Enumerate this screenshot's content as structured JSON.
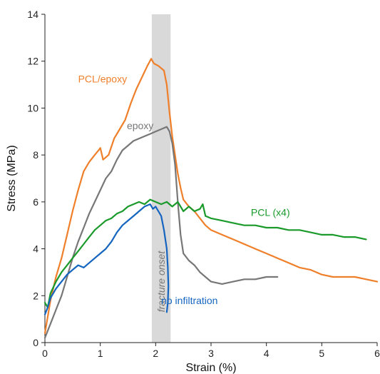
{
  "chart_data": {
    "type": "line",
    "xlabel": "Strain (%)",
    "ylabel": "Stress (MPa)",
    "xlim": [
      0,
      6
    ],
    "ylim": [
      0,
      14
    ],
    "x_ticks": [
      0,
      1,
      2,
      3,
      4,
      5,
      6
    ],
    "y_ticks": [
      0,
      2,
      4,
      6,
      8,
      10,
      12,
      14
    ],
    "grid": false,
    "band": {
      "x_range": [
        1.93,
        2.27
      ],
      "label": "fracture onset",
      "color": "#d9d9d9"
    },
    "series": [
      {
        "name": "PCL/epoxy",
        "color": "#f07f2a",
        "label_at": [
          0.6,
          11.1
        ],
        "points": [
          [
            0,
            0.4
          ],
          [
            0.1,
            1.8
          ],
          [
            0.2,
            2.8
          ],
          [
            0.3,
            3.6
          ],
          [
            0.4,
            4.6
          ],
          [
            0.5,
            5.6
          ],
          [
            0.6,
            6.5
          ],
          [
            0.7,
            7.3
          ],
          [
            0.8,
            7.7
          ],
          [
            0.9,
            8.0
          ],
          [
            0.97,
            8.2
          ],
          [
            1.0,
            8.3
          ],
          [
            1.05,
            7.8
          ],
          [
            1.15,
            8.0
          ],
          [
            1.25,
            8.7
          ],
          [
            1.35,
            9.1
          ],
          [
            1.45,
            9.5
          ],
          [
            1.55,
            10.2
          ],
          [
            1.65,
            10.8
          ],
          [
            1.75,
            11.3
          ],
          [
            1.85,
            11.8
          ],
          [
            1.92,
            12.1
          ],
          [
            1.97,
            11.9
          ],
          [
            2.05,
            11.8
          ],
          [
            2.15,
            11.6
          ],
          [
            2.2,
            11.0
          ],
          [
            2.25,
            9.8
          ],
          [
            2.3,
            8.8
          ],
          [
            2.35,
            8.0
          ],
          [
            2.4,
            7.2
          ],
          [
            2.45,
            6.6
          ],
          [
            2.5,
            6.1
          ],
          [
            2.6,
            5.8
          ],
          [
            2.7,
            5.6
          ],
          [
            2.8,
            5.3
          ],
          [
            2.9,
            5.0
          ],
          [
            3.0,
            4.8
          ],
          [
            3.2,
            4.6
          ],
          [
            3.4,
            4.4
          ],
          [
            3.6,
            4.2
          ],
          [
            3.8,
            4.0
          ],
          [
            4.0,
            3.8
          ],
          [
            4.2,
            3.6
          ],
          [
            4.4,
            3.4
          ],
          [
            4.6,
            3.2
          ],
          [
            4.8,
            3.1
          ],
          [
            5.0,
            2.9
          ],
          [
            5.2,
            2.8
          ],
          [
            5.4,
            2.8
          ],
          [
            5.6,
            2.8
          ],
          [
            5.8,
            2.7
          ],
          [
            6.0,
            2.6
          ]
        ]
      },
      {
        "name": "epoxy",
        "color": "#777777",
        "label_at": [
          1.48,
          9.1
        ],
        "points": [
          [
            0,
            0.2
          ],
          [
            0.1,
            0.8
          ],
          [
            0.2,
            1.4
          ],
          [
            0.3,
            2.0
          ],
          [
            0.4,
            2.8
          ],
          [
            0.5,
            3.6
          ],
          [
            0.6,
            4.3
          ],
          [
            0.7,
            4.9
          ],
          [
            0.8,
            5.5
          ],
          [
            0.9,
            6.0
          ],
          [
            1.0,
            6.5
          ],
          [
            1.1,
            7.0
          ],
          [
            1.2,
            7.3
          ],
          [
            1.3,
            7.8
          ],
          [
            1.4,
            8.2
          ],
          [
            1.5,
            8.4
          ],
          [
            1.6,
            8.6
          ],
          [
            1.7,
            8.7
          ],
          [
            1.8,
            8.8
          ],
          [
            1.9,
            8.9
          ],
          [
            2.0,
            9.0
          ],
          [
            2.1,
            9.1
          ],
          [
            2.2,
            9.2
          ],
          [
            2.25,
            9.0
          ],
          [
            2.3,
            8.5
          ],
          [
            2.35,
            7.6
          ],
          [
            2.4,
            6.0
          ],
          [
            2.45,
            4.6
          ],
          [
            2.5,
            3.8
          ],
          [
            2.6,
            3.5
          ],
          [
            2.7,
            3.3
          ],
          [
            2.8,
            3.0
          ],
          [
            2.9,
            2.8
          ],
          [
            3.0,
            2.6
          ],
          [
            3.2,
            2.5
          ],
          [
            3.4,
            2.6
          ],
          [
            3.6,
            2.7
          ],
          [
            3.8,
            2.7
          ],
          [
            4.0,
            2.8
          ],
          [
            4.2,
            2.8
          ]
        ]
      },
      {
        "name": "PCL (x4)",
        "color": "#1a9a2a",
        "label_at": [
          3.72,
          5.4
        ],
        "points": [
          [
            0,
            1.7
          ],
          [
            0.05,
            1.5
          ],
          [
            0.1,
            2.1
          ],
          [
            0.2,
            2.6
          ],
          [
            0.3,
            3.0
          ],
          [
            0.4,
            3.3
          ],
          [
            0.5,
            3.6
          ],
          [
            0.6,
            3.9
          ],
          [
            0.7,
            4.2
          ],
          [
            0.8,
            4.5
          ],
          [
            0.9,
            4.8
          ],
          [
            1.0,
            5.0
          ],
          [
            1.1,
            5.2
          ],
          [
            1.2,
            5.3
          ],
          [
            1.3,
            5.5
          ],
          [
            1.4,
            5.6
          ],
          [
            1.5,
            5.8
          ],
          [
            1.6,
            5.9
          ],
          [
            1.7,
            6.0
          ],
          [
            1.8,
            5.9
          ],
          [
            1.9,
            6.1
          ],
          [
            2.0,
            6.0
          ],
          [
            2.1,
            5.9
          ],
          [
            2.2,
            6.0
          ],
          [
            2.3,
            5.8
          ],
          [
            2.4,
            6.0
          ],
          [
            2.5,
            5.6
          ],
          [
            2.6,
            5.8
          ],
          [
            2.7,
            5.6
          ],
          [
            2.8,
            5.7
          ],
          [
            2.85,
            5.9
          ],
          [
            2.9,
            5.4
          ],
          [
            3.0,
            5.3
          ],
          [
            3.2,
            5.2
          ],
          [
            3.4,
            5.1
          ],
          [
            3.6,
            5.0
          ],
          [
            3.8,
            5.0
          ],
          [
            4.0,
            4.9
          ],
          [
            4.2,
            4.9
          ],
          [
            4.4,
            4.8
          ],
          [
            4.6,
            4.8
          ],
          [
            4.8,
            4.7
          ],
          [
            5.0,
            4.6
          ],
          [
            5.2,
            4.6
          ],
          [
            5.4,
            4.5
          ],
          [
            5.6,
            4.5
          ],
          [
            5.8,
            4.4
          ]
        ]
      },
      {
        "name": "no infiltration",
        "color": "#1565c0",
        "label_at": [
          2.1,
          1.65
        ],
        "points": [
          [
            0,
            1.2
          ],
          [
            0.05,
            1.5
          ],
          [
            0.1,
            1.9
          ],
          [
            0.2,
            2.3
          ],
          [
            0.3,
            2.6
          ],
          [
            0.4,
            2.9
          ],
          [
            0.5,
            3.1
          ],
          [
            0.6,
            3.3
          ],
          [
            0.7,
            3.2
          ],
          [
            0.8,
            3.4
          ],
          [
            0.9,
            3.6
          ],
          [
            1.0,
            3.8
          ],
          [
            1.1,
            4.0
          ],
          [
            1.2,
            4.3
          ],
          [
            1.3,
            4.7
          ],
          [
            1.4,
            5.0
          ],
          [
            1.5,
            5.2
          ],
          [
            1.6,
            5.4
          ],
          [
            1.7,
            5.6
          ],
          [
            1.8,
            5.8
          ],
          [
            1.9,
            5.9
          ],
          [
            1.95,
            5.7
          ],
          [
            2.0,
            5.8
          ],
          [
            2.05,
            5.6
          ],
          [
            2.1,
            5.4
          ],
          [
            2.15,
            4.8
          ],
          [
            2.2,
            4.0
          ],
          [
            2.22,
            3.2
          ],
          [
            2.23,
            2.4
          ],
          [
            2.22,
            1.7
          ],
          [
            2.2,
            1.3
          ]
        ]
      }
    ]
  }
}
